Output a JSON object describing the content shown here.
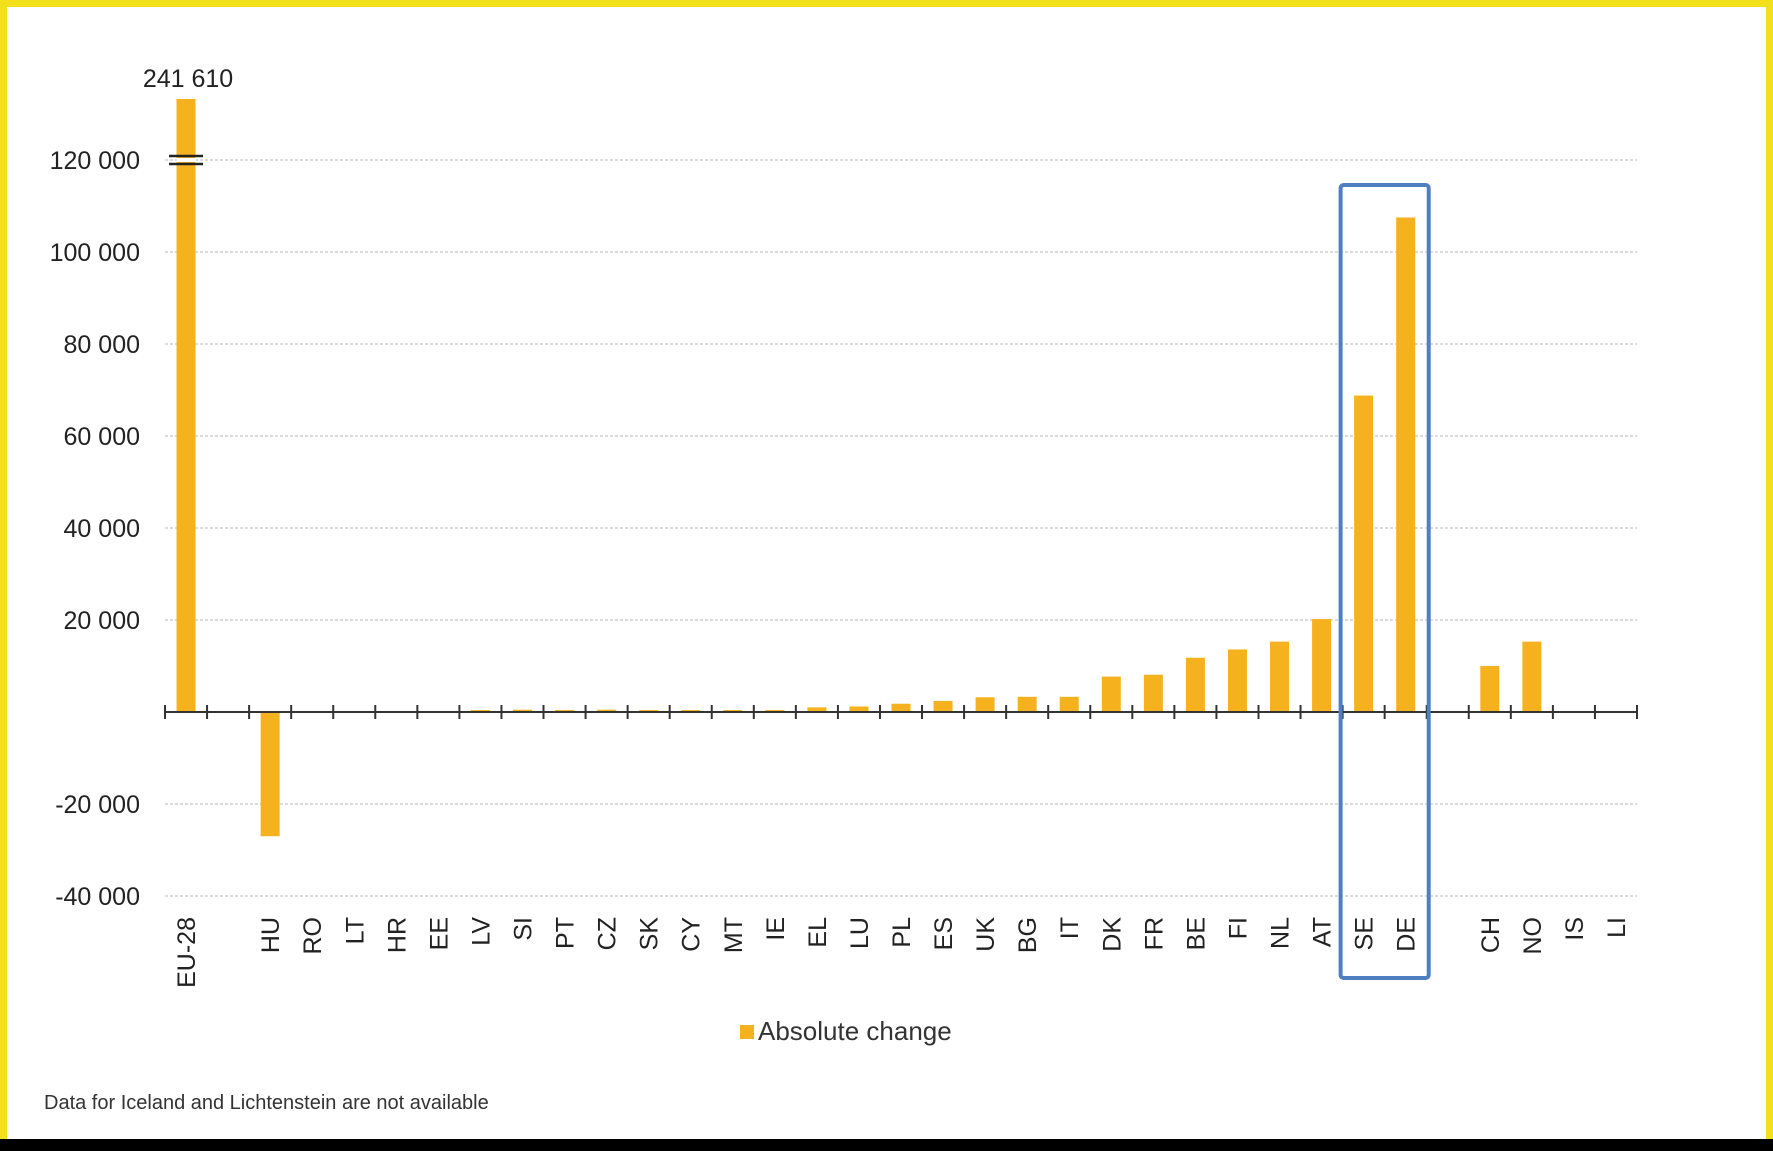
{
  "chart_data": {
    "type": "bar",
    "categories": [
      "EU-28",
      "",
      "HU",
      "RO",
      "LT",
      "HR",
      "EE",
      "LV",
      "SI",
      "PT",
      "CZ",
      "SK",
      "CY",
      "MT",
      "IE",
      "EL",
      "LU",
      "PL",
      "ES",
      "UK",
      "BG",
      "IT",
      "DK",
      "FR",
      "BE",
      "FI",
      "NL",
      "AT",
      "SE",
      "DE",
      "",
      "CH",
      "NO",
      "IS",
      "LI"
    ],
    "series": [
      {
        "name": "Absolute change",
        "values": [
          241610,
          null,
          -27000,
          0,
          0,
          0,
          0,
          400,
          500,
          400,
          500,
          400,
          300,
          400,
          400,
          1000,
          1200,
          1800,
          2400,
          3200,
          3300,
          3300,
          7700,
          8100,
          11800,
          13600,
          15300,
          20200,
          68800,
          107500,
          null,
          10000,
          15300,
          null,
          null
        ]
      }
    ],
    "ylim": [
      -40000,
      130000
    ],
    "yticks": [
      -40000,
      -20000,
      20000,
      40000,
      60000,
      80000,
      100000,
      120000
    ],
    "ytick_labels": [
      "-40 000",
      "-20 000",
      "20 000",
      "40 000",
      "60 000",
      "80 000",
      "100 000",
      "120 000"
    ],
    "axis_break": {
      "category": "EU-28",
      "label": "241 610"
    },
    "grid": true,
    "legend": {
      "position": "bottom",
      "entries": [
        "Absolute change"
      ]
    },
    "highlight_box": {
      "categories": [
        "SE",
        "DE"
      ],
      "color": "#4f7fc1"
    },
    "bar_color": "#f5b21e",
    "note": "Data for Iceland and Lichtenstein are not available"
  }
}
